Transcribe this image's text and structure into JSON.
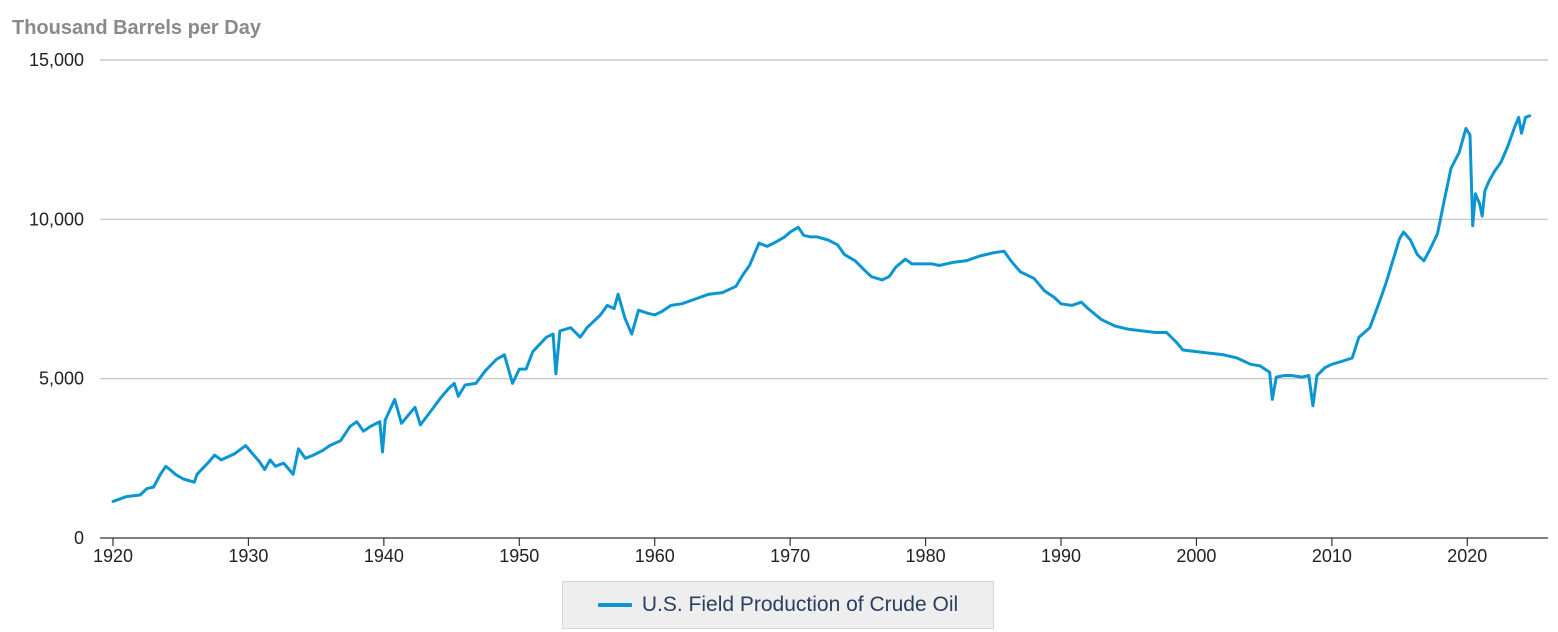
{
  "chart_data": {
    "type": "line",
    "ylabel": "Thousand Barrels per Day",
    "xlim": [
      1920,
      2025
    ],
    "ylim": [
      0,
      15000
    ],
    "x_ticks": [
      1920,
      1930,
      1940,
      1950,
      1960,
      1970,
      1980,
      1990,
      2000,
      2010,
      2020
    ],
    "y_ticks": [
      0,
      5000,
      10000,
      15000
    ],
    "y_tick_labels": [
      "0",
      "5,000",
      "10,000",
      "15,000"
    ],
    "grid": "horizontal",
    "legend_position": "bottom",
    "series": [
      {
        "name": "U.S. Field Production of Crude Oil",
        "color": "#0b96d1",
        "points": [
          [
            1920.0,
            1150
          ],
          [
            1921.0,
            1300
          ],
          [
            1922.0,
            1350
          ],
          [
            1922.5,
            1550
          ],
          [
            1923.0,
            1600
          ],
          [
            1923.5,
            2000
          ],
          [
            1923.9,
            2250
          ],
          [
            1924.2,
            2150
          ],
          [
            1924.6,
            2000
          ],
          [
            1925.2,
            1850
          ],
          [
            1926.0,
            1750
          ],
          [
            1926.2,
            2000
          ],
          [
            1927.0,
            2350
          ],
          [
            1927.5,
            2600
          ],
          [
            1928.0,
            2450
          ],
          [
            1929.0,
            2650
          ],
          [
            1929.8,
            2900
          ],
          [
            1930.2,
            2700
          ],
          [
            1930.8,
            2400
          ],
          [
            1931.2,
            2150
          ],
          [
            1931.6,
            2450
          ],
          [
            1932.0,
            2250
          ],
          [
            1932.6,
            2350
          ],
          [
            1933.0,
            2150
          ],
          [
            1933.3,
            2000
          ],
          [
            1933.7,
            2800
          ],
          [
            1934.2,
            2500
          ],
          [
            1934.8,
            2600
          ],
          [
            1935.5,
            2750
          ],
          [
            1936.0,
            2900
          ],
          [
            1936.8,
            3050
          ],
          [
            1937.5,
            3500
          ],
          [
            1938.0,
            3650
          ],
          [
            1938.5,
            3350
          ],
          [
            1939.0,
            3500
          ],
          [
            1939.7,
            3650
          ],
          [
            1939.9,
            2700
          ],
          [
            1940.1,
            3700
          ],
          [
            1940.8,
            4350
          ],
          [
            1941.3,
            3600
          ],
          [
            1941.9,
            3900
          ],
          [
            1942.3,
            4100
          ],
          [
            1942.7,
            3550
          ],
          [
            1943.5,
            4000
          ],
          [
            1944.2,
            4400
          ],
          [
            1944.8,
            4700
          ],
          [
            1945.2,
            4850
          ],
          [
            1945.5,
            4450
          ],
          [
            1946.0,
            4800
          ],
          [
            1946.8,
            4850
          ],
          [
            1947.5,
            5250
          ],
          [
            1948.3,
            5600
          ],
          [
            1948.9,
            5750
          ],
          [
            1949.5,
            4850
          ],
          [
            1950.0,
            5300
          ],
          [
            1950.5,
            5300
          ],
          [
            1951.0,
            5850
          ],
          [
            1952.0,
            6300
          ],
          [
            1952.5,
            6400
          ],
          [
            1952.7,
            5150
          ],
          [
            1953.0,
            6500
          ],
          [
            1953.8,
            6600
          ],
          [
            1954.5,
            6300
          ],
          [
            1955.0,
            6600
          ],
          [
            1956.0,
            7000
          ],
          [
            1956.5,
            7300
          ],
          [
            1957.0,
            7200
          ],
          [
            1957.3,
            7650
          ],
          [
            1957.8,
            6900
          ],
          [
            1958.3,
            6400
          ],
          [
            1958.8,
            7150
          ],
          [
            1959.5,
            7050
          ],
          [
            1960.0,
            7000
          ],
          [
            1960.5,
            7100
          ],
          [
            1961.2,
            7300
          ],
          [
            1962.0,
            7350
          ],
          [
            1963.0,
            7500
          ],
          [
            1964.0,
            7650
          ],
          [
            1965.0,
            7700
          ],
          [
            1966.0,
            7900
          ],
          [
            1966.5,
            8250
          ],
          [
            1967.0,
            8550
          ],
          [
            1967.7,
            9250
          ],
          [
            1968.3,
            9150
          ],
          [
            1969.0,
            9300
          ],
          [
            1969.6,
            9450
          ],
          [
            1970.0,
            9600
          ],
          [
            1970.6,
            9750
          ],
          [
            1971.0,
            9500
          ],
          [
            1971.5,
            9450
          ],
          [
            1972.0,
            9450
          ],
          [
            1972.8,
            9350
          ],
          [
            1973.5,
            9200
          ],
          [
            1974.0,
            8900
          ],
          [
            1974.8,
            8700
          ],
          [
            1975.5,
            8400
          ],
          [
            1976.0,
            8200
          ],
          [
            1976.8,
            8100
          ],
          [
            1977.3,
            8200
          ],
          [
            1977.8,
            8500
          ],
          [
            1978.5,
            8750
          ],
          [
            1979.0,
            8600
          ],
          [
            1979.8,
            8600
          ],
          [
            1980.5,
            8600
          ],
          [
            1981.0,
            8550
          ],
          [
            1982.0,
            8650
          ],
          [
            1983.0,
            8700
          ],
          [
            1984.0,
            8850
          ],
          [
            1985.0,
            8950
          ],
          [
            1985.8,
            9000
          ],
          [
            1986.3,
            8700
          ],
          [
            1987.0,
            8350
          ],
          [
            1988.0,
            8150
          ],
          [
            1988.8,
            7750
          ],
          [
            1989.5,
            7550
          ],
          [
            1990.0,
            7350
          ],
          [
            1990.8,
            7300
          ],
          [
            1991.5,
            7400
          ],
          [
            1992.0,
            7200
          ],
          [
            1993.0,
            6850
          ],
          [
            1994.0,
            6650
          ],
          [
            1995.0,
            6550
          ],
          [
            1996.0,
            6500
          ],
          [
            1997.0,
            6450
          ],
          [
            1997.8,
            6450
          ],
          [
            1998.5,
            6150
          ],
          [
            1999.0,
            5900
          ],
          [
            2000.0,
            5850
          ],
          [
            2001.0,
            5800
          ],
          [
            2002.0,
            5750
          ],
          [
            2003.0,
            5650
          ],
          [
            2004.0,
            5450
          ],
          [
            2004.7,
            5400
          ],
          [
            2005.4,
            5200
          ],
          [
            2005.6,
            4350
          ],
          [
            2005.9,
            5050
          ],
          [
            2006.5,
            5100
          ],
          [
            2007.0,
            5100
          ],
          [
            2007.8,
            5050
          ],
          [
            2008.3,
            5100
          ],
          [
            2008.6,
            4150
          ],
          [
            2008.9,
            5100
          ],
          [
            2009.5,
            5350
          ],
          [
            2010.0,
            5450
          ],
          [
            2010.8,
            5550
          ],
          [
            2011.5,
            5650
          ],
          [
            2012.0,
            6300
          ],
          [
            2012.8,
            6600
          ],
          [
            2013.5,
            7400
          ],
          [
            2014.0,
            8000
          ],
          [
            2014.5,
            8700
          ],
          [
            2015.0,
            9400
          ],
          [
            2015.3,
            9600
          ],
          [
            2015.8,
            9350
          ],
          [
            2016.3,
            8900
          ],
          [
            2016.8,
            8700
          ],
          [
            2017.3,
            9100
          ],
          [
            2017.8,
            9550
          ],
          [
            2018.3,
            10600
          ],
          [
            2018.8,
            11600
          ],
          [
            2019.4,
            12100
          ],
          [
            2019.9,
            12850
          ],
          [
            2020.2,
            12650
          ],
          [
            2020.4,
            9800
          ],
          [
            2020.6,
            10800
          ],
          [
            2020.9,
            10500
          ],
          [
            2021.1,
            10100
          ],
          [
            2021.3,
            10900
          ],
          [
            2021.6,
            11200
          ],
          [
            2022.0,
            11500
          ],
          [
            2022.5,
            11800
          ],
          [
            2023.0,
            12300
          ],
          [
            2023.5,
            12900
          ],
          [
            2023.8,
            13200
          ],
          [
            2024.0,
            12700
          ],
          [
            2024.3,
            13200
          ],
          [
            2024.6,
            13250
          ]
        ]
      }
    ]
  }
}
